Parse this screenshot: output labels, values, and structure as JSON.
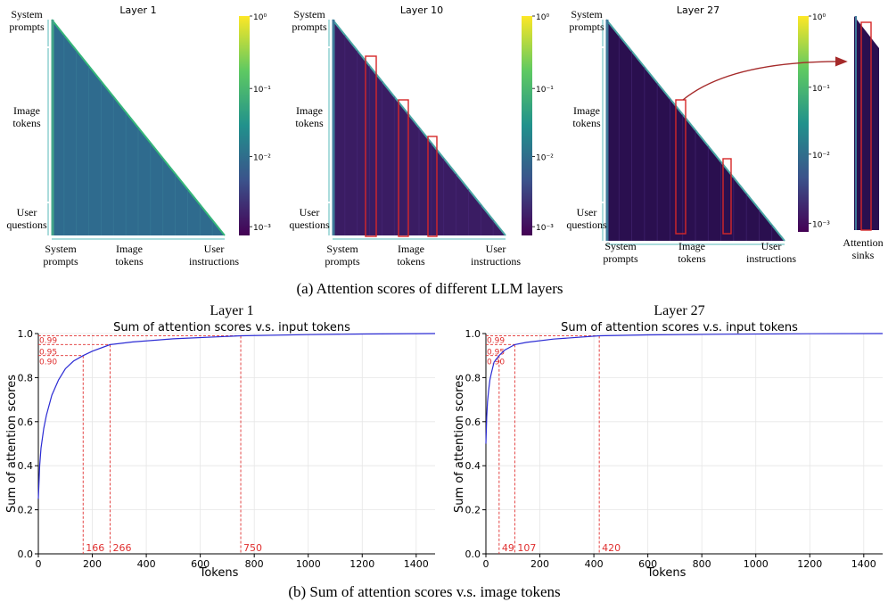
{
  "figure": {
    "caption_a": "(a) Attention scores of different LLM layers",
    "caption_b": "(b) Sum of attention scores v.s. image tokens"
  },
  "heatmaps": [
    {
      "title": "Layer 1",
      "y_labels": [
        [
          "System",
          "prompts"
        ],
        [
          "Image",
          "tokens"
        ],
        [
          "User",
          "questions"
        ]
      ],
      "x_labels": [
        [
          "System",
          "prompts"
        ],
        [
          "Image",
          "tokens"
        ],
        [
          "User",
          "instructions"
        ]
      ],
      "colorbar_ticks": [
        "10⁰",
        "10⁻¹",
        "10⁻²",
        "10⁻³"
      ],
      "base_color": "#2f6b8e",
      "highlight_boxes": 0
    },
    {
      "title": "Layer 10",
      "y_labels": [
        [
          "System",
          "prompts"
        ],
        [
          "Image",
          "tokens"
        ],
        [
          "User",
          "questions"
        ]
      ],
      "x_labels": [
        [
          "System",
          "prompts"
        ],
        [
          "Image",
          "tokens"
        ],
        [
          "User",
          "instructions"
        ]
      ],
      "colorbar_ticks": [
        "10⁰",
        "10⁻¹",
        "10⁻²",
        "10⁻³"
      ],
      "base_color": "#3a1c63",
      "highlight_boxes": 3
    },
    {
      "title": "Layer 27",
      "y_labels": [
        [
          "System",
          "prompts"
        ],
        [
          "Image",
          "tokens"
        ],
        [
          "User",
          "questions"
        ]
      ],
      "x_labels": [
        [
          "System",
          "prompts"
        ],
        [
          "Image",
          "tokens"
        ],
        [
          "User",
          "instructions"
        ]
      ],
      "colorbar_ticks": [
        "10⁰",
        "10⁻¹",
        "10⁻²",
        "10⁻³"
      ],
      "base_color": "#2a0f4f",
      "highlight_boxes": 2
    }
  ],
  "sinks_label": [
    "Attention",
    "sinks"
  ],
  "colors": {
    "box": "#d62728",
    "arrow": "#a52a2a",
    "curve": "#2b2bd4",
    "ref": "#e03030",
    "ref_text": "#e03030",
    "colorbar": [
      "#fde725",
      "#5ec962",
      "#21918c",
      "#3b528b",
      "#440154"
    ]
  },
  "chart_data": [
    {
      "type": "line",
      "heading": "Layer 1",
      "title": "Sum of attention scores v.s. input tokens",
      "xlabel": "Tokens",
      "ylabel": "Sum of attention scores",
      "xlim": [
        0,
        1470
      ],
      "ylim": [
        0,
        1.0
      ],
      "xticks": [
        0,
        200,
        400,
        600,
        800,
        1000,
        1200,
        1400
      ],
      "yticks": [
        0.0,
        0.2,
        0.4,
        0.6,
        0.8,
        1.0
      ],
      "grid": true,
      "series": [
        {
          "x": [
            0,
            5,
            10,
            20,
            30,
            50,
            75,
            100,
            130,
            166,
            200,
            266,
            350,
            500,
            750,
            1000,
            1200,
            1470
          ],
          "y": [
            0.25,
            0.4,
            0.48,
            0.57,
            0.63,
            0.72,
            0.79,
            0.84,
            0.875,
            0.9,
            0.92,
            0.95,
            0.962,
            0.976,
            0.99,
            0.995,
            0.998,
            1.0
          ]
        }
      ],
      "thresholds": [
        {
          "level": "0.90",
          "y": 0.9,
          "tokens": 166
        },
        {
          "level": "0.95",
          "y": 0.95,
          "tokens": 266
        },
        {
          "level": "0.99",
          "y": 0.99,
          "tokens": 750
        }
      ]
    },
    {
      "type": "line",
      "heading": "Layer 27",
      "title": "Sum of attention scores v.s. input tokens",
      "xlabel": "Tokens",
      "ylabel": "Sum of attention scores",
      "xlim": [
        0,
        1470
      ],
      "ylim": [
        0,
        1.0
      ],
      "xticks": [
        0,
        200,
        400,
        600,
        800,
        1000,
        1200,
        1400
      ],
      "yticks": [
        0.0,
        0.2,
        0.4,
        0.6,
        0.8,
        1.0
      ],
      "grid": true,
      "series": [
        {
          "x": [
            0,
            3,
            6,
            10,
            15,
            20,
            30,
            49,
            70,
            107,
            150,
            250,
            420,
            600,
            900,
            1200,
            1470
          ],
          "y": [
            0.5,
            0.62,
            0.69,
            0.74,
            0.79,
            0.82,
            0.87,
            0.9,
            0.925,
            0.95,
            0.96,
            0.975,
            0.99,
            0.994,
            0.997,
            0.999,
            1.0
          ]
        }
      ],
      "thresholds": [
        {
          "level": "0.90",
          "y": 0.9,
          "tokens": 49
        },
        {
          "level": "0.95",
          "y": 0.95,
          "tokens": 107
        },
        {
          "level": "0.99",
          "y": 0.99,
          "tokens": 420
        }
      ]
    }
  ]
}
